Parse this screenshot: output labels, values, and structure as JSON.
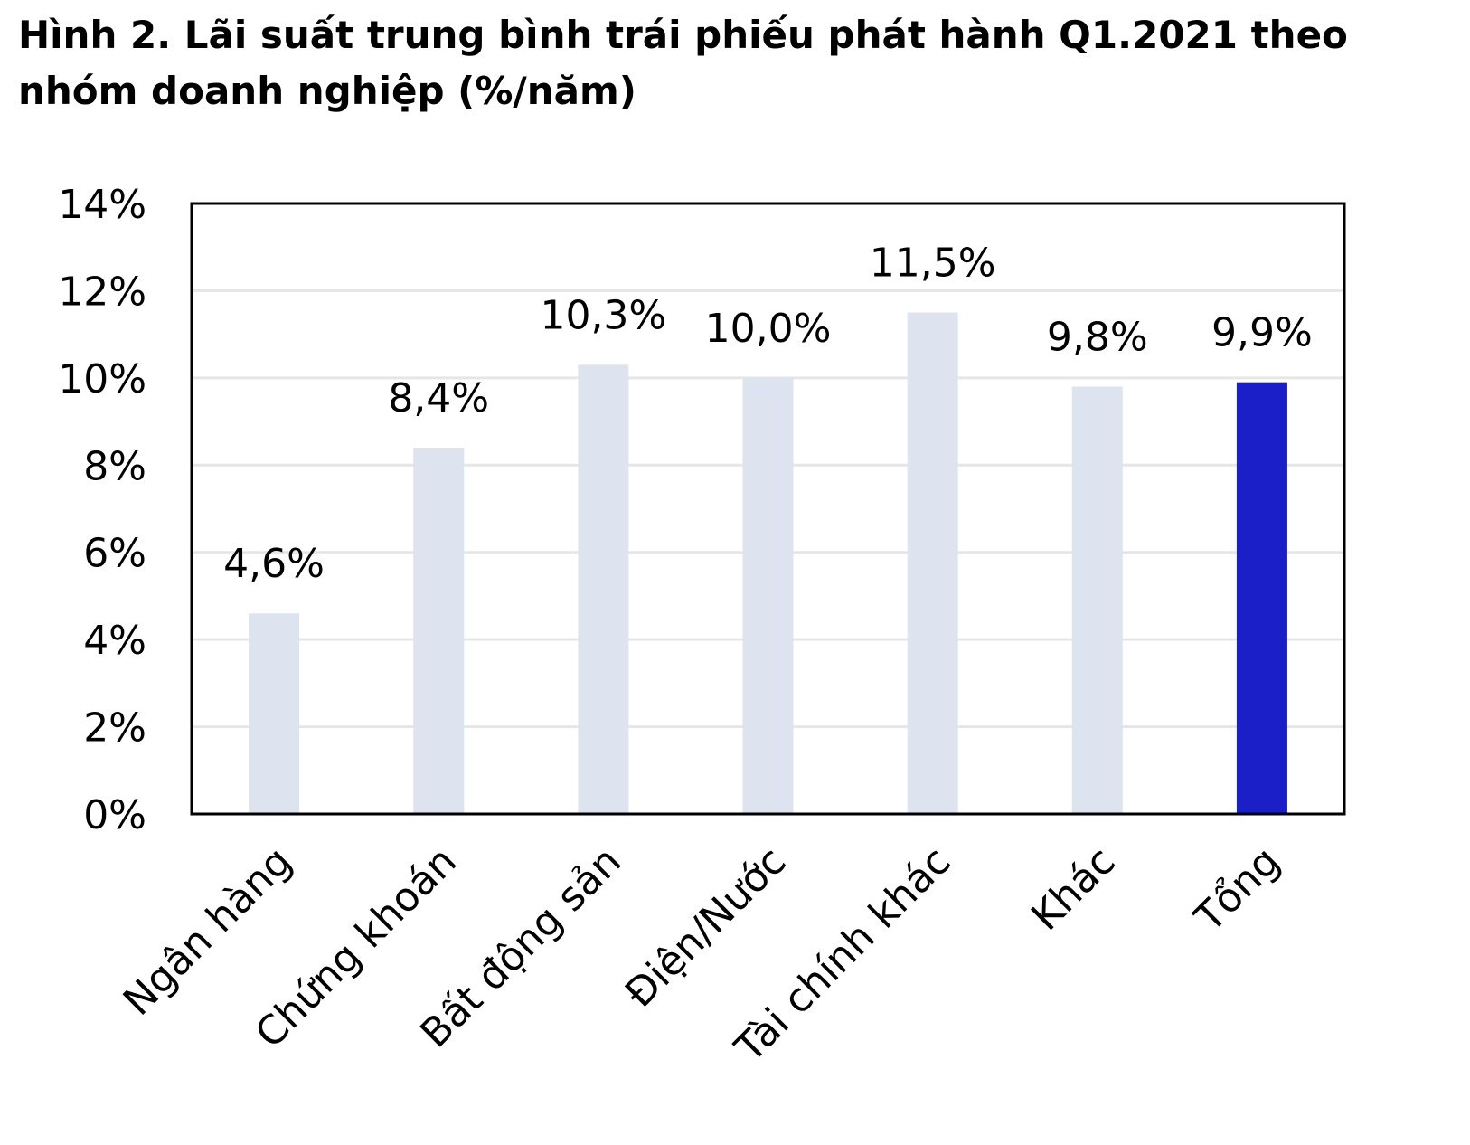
{
  "chart_data": {
    "type": "bar",
    "title": "Hình 2. Lãi suất trung bình trái phiếu phát hành Q1.2021 theo nhóm doanh nghiệp (%/năm)",
    "categories": [
      "Ngân hàng",
      "Chứng khoán",
      "Bất động sản",
      "Điện/Nước",
      "Tài chính khác",
      "Khác",
      "Tổng"
    ],
    "values": [
      4.6,
      8.4,
      10.3,
      10.0,
      11.5,
      9.8,
      9.9
    ],
    "value_labels": [
      "4,6%",
      "8,4%",
      "10,3%",
      "10,0%",
      "11,5%",
      "9,8%",
      "9,9%"
    ],
    "colors": [
      "#dde4f0",
      "#dde4f0",
      "#dde4f0",
      "#dde4f0",
      "#dde4f0",
      "#dde4f0",
      "#1a1fc8"
    ],
    "ylim": [
      0,
      14
    ],
    "yticks": [
      {
        "value": 0,
        "label": "0%"
      },
      {
        "value": 2,
        "label": "2%"
      },
      {
        "value": 4,
        "label": "4%"
      },
      {
        "value": 6,
        "label": "6%"
      },
      {
        "value": 8,
        "label": "8%"
      },
      {
        "value": 10,
        "label": "10%"
      },
      {
        "value": 12,
        "label": "12%"
      },
      {
        "value": 14,
        "label": "14%"
      }
    ],
    "grid": true
  }
}
